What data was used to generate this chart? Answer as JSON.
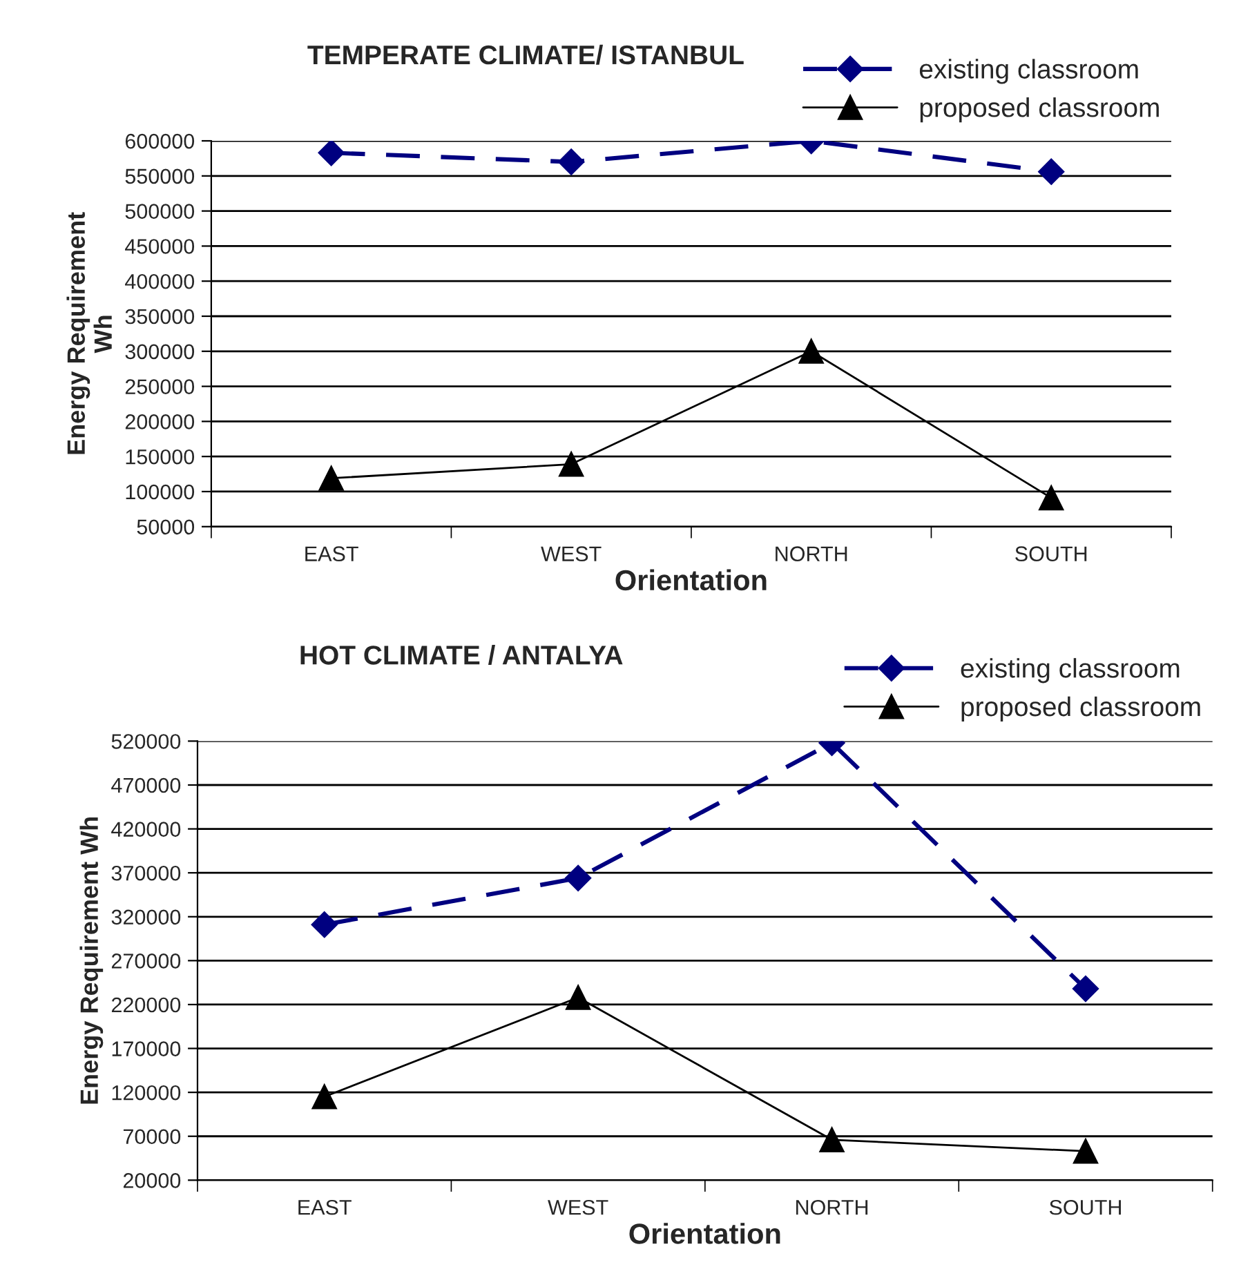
{
  "chart_data": [
    {
      "type": "line",
      "title": "TEMPERATE CLIMATE/ ISTANBUL",
      "xlabel": "Orientation",
      "ylabel": "Energy Requirement\nWh",
      "categories": [
        "EAST",
        "WEST",
        "NORTH",
        "SOUTH"
      ],
      "series": [
        {
          "name": "existing classroom",
          "color": "#000080",
          "marker": "diamond",
          "line_style": "dashed",
          "values": [
            583000,
            570000,
            600000,
            556000
          ]
        },
        {
          "name": "proposed classroom",
          "color": "#000000",
          "marker": "triangle",
          "line_style": "solid",
          "values": [
            119000,
            139000,
            300000,
            91000
          ]
        }
      ],
      "ylim": [
        50000,
        600000
      ],
      "yticks": [
        50000,
        100000,
        150000,
        200000,
        250000,
        300000,
        350000,
        400000,
        450000,
        500000,
        550000,
        600000
      ],
      "grid": "y",
      "legend": "top right"
    },
    {
      "type": "line",
      "title": "HOT CLIMATE / ANTALYA",
      "xlabel": "Orientation",
      "ylabel": "Energy Requirement Wh",
      "categories": [
        "EAST",
        "WEST",
        "NORTH",
        "SOUTH"
      ],
      "series": [
        {
          "name": "existing classroom",
          "color": "#000080",
          "marker": "diamond",
          "line_style": "dashed",
          "values": [
            311000,
            364000,
            518000,
            238000
          ]
        },
        {
          "name": "proposed classroom",
          "color": "#000000",
          "marker": "triangle",
          "line_style": "solid",
          "values": [
            115000,
            228000,
            66000,
            53000
          ]
        }
      ],
      "ylim": [
        20000,
        520000
      ],
      "yticks": [
        20000,
        70000,
        120000,
        170000,
        220000,
        270000,
        320000,
        370000,
        420000,
        470000,
        520000
      ],
      "grid": "y",
      "legend": "top right"
    }
  ]
}
